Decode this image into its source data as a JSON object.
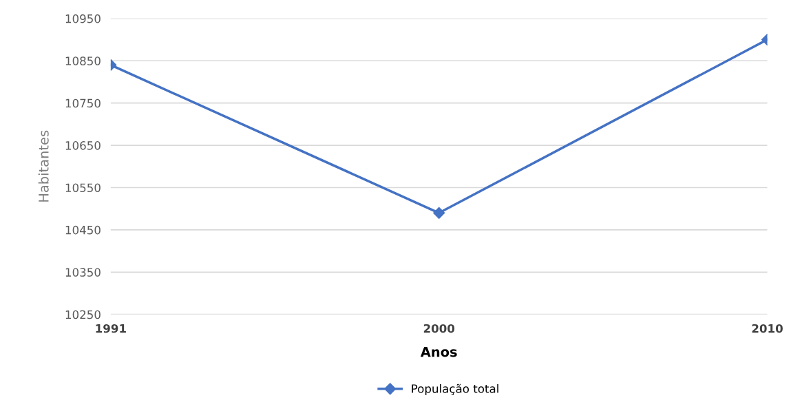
{
  "chart_data": {
    "type": "line",
    "xlabel": "Anos",
    "ylabel": "Habitantes",
    "categories": [
      "1991",
      "2000",
      "2010"
    ],
    "series": [
      {
        "name": "População total",
        "color": "#4472c4",
        "values": [
          10840,
          10490,
          10900
        ]
      }
    ],
    "ylim": [
      10250,
      10950
    ],
    "yticks": [
      10250,
      10350,
      10450,
      10550,
      10650,
      10750,
      10850,
      10950
    ],
    "grid": "y",
    "legend": "bottom",
    "marker": "diamond",
    "line_style": "solid"
  }
}
